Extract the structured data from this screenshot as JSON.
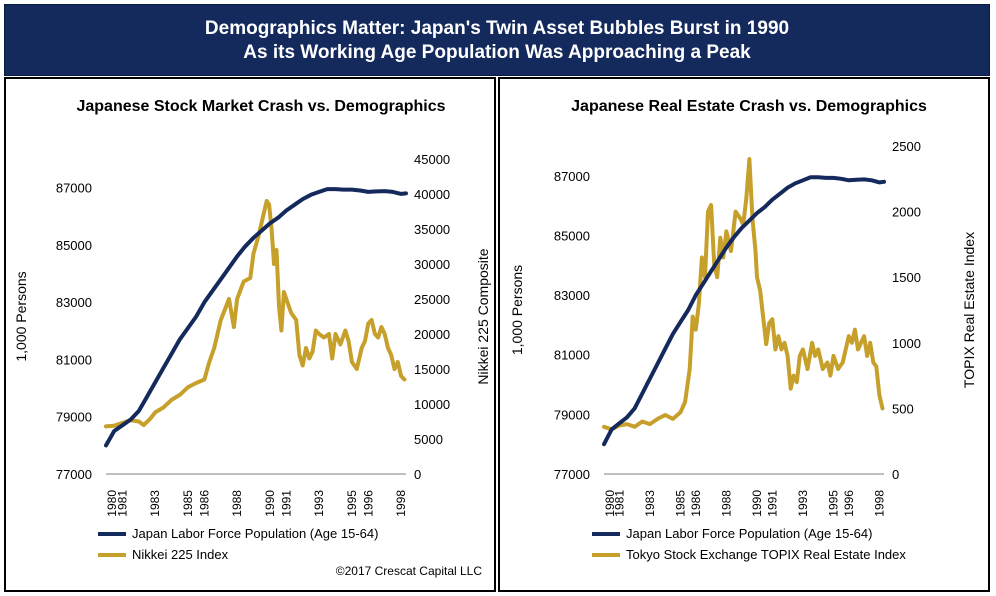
{
  "header": {
    "title_line1": "Demographics Matter: Japan's Twin Asset Bubbles Burst in 1990",
    "title_line2": "As its Working Age Population Was Approaching a Peak"
  },
  "colors": {
    "banner": "#14295c",
    "labor": "#14295c",
    "index": "#c6a02a"
  },
  "chart_data": [
    {
      "type": "line",
      "title": "Japanese Stock Market Crash vs. Demographics",
      "ylabel": "1,000 Persons",
      "y2label": "Nikkei 225 Composite",
      "ylim": [
        77000,
        88000
      ],
      "yticks": [
        77000,
        79000,
        81000,
        83000,
        85000,
        87000
      ],
      "y2lim": [
        0,
        45000
      ],
      "y2ticks": [
        0,
        5000,
        10000,
        15000,
        20000,
        25000,
        30000,
        35000,
        40000,
        45000
      ],
      "xlim": [
        1980,
        1998.3
      ],
      "xticks": [
        "1980",
        "1981",
        "1983",
        "1985",
        "1986",
        "1988",
        "1990",
        "1991",
        "1993",
        "1995",
        "1996",
        "1998"
      ],
      "legend": "bottom",
      "footer": "©2017 Crescat Capital LLC",
      "series": [
        {
          "name": "Japan Labor Force Population (Age 15-64)",
          "axis": "left",
          "x": [
            1980,
            1980.5,
            1981,
            1981.5,
            1982,
            1982.5,
            1983,
            1983.5,
            1984,
            1984.5,
            1985,
            1985.5,
            1986,
            1986.5,
            1987,
            1987.5,
            1988,
            1988.5,
            1989,
            1989.5,
            1990,
            1990.5,
            1991,
            1991.5,
            1992,
            1992.5,
            1993,
            1993.5,
            1994,
            1994.5,
            1995,
            1995.5,
            1996,
            1996.5,
            1997,
            1997.5,
            1998,
            1998.3
          ],
          "values": [
            78000,
            78500,
            78700,
            78900,
            79200,
            79700,
            80200,
            80700,
            81200,
            81700,
            82100,
            82500,
            83000,
            83400,
            83800,
            84200,
            84600,
            84950,
            85250,
            85500,
            85750,
            85950,
            86200,
            86400,
            86600,
            86750,
            86850,
            86950,
            86950,
            86930,
            86930,
            86900,
            86850,
            86870,
            86880,
            86850,
            86780,
            86800
          ]
        },
        {
          "name": "Nikkei 225 Index",
          "axis": "right",
          "x": [
            1980,
            1980.5,
            1981,
            1981.5,
            1982,
            1982.3,
            1982.7,
            1983,
            1983.5,
            1984,
            1984.5,
            1985,
            1985.5,
            1986,
            1986.3,
            1986.6,
            1987,
            1987.5,
            1987.8,
            1988,
            1988.4,
            1988.8,
            1989,
            1989.3,
            1989.6,
            1989.8,
            1989.95,
            1990.1,
            1990.25,
            1990.4,
            1990.55,
            1990.7,
            1990.85,
            1991,
            1991.3,
            1991.6,
            1991.8,
            1992,
            1992.2,
            1992.4,
            1992.6,
            1992.8,
            1993,
            1993.3,
            1993.6,
            1993.8,
            1994,
            1994.3,
            1994.6,
            1994.8,
            1995,
            1995.3,
            1995.6,
            1995.8,
            1996,
            1996.2,
            1996.4,
            1996.6,
            1996.8,
            1997,
            1997.2,
            1997.4,
            1997.6,
            1997.8,
            1998,
            1998.2
          ],
          "values": [
            6800,
            6900,
            7300,
            7700,
            7500,
            7000,
            7900,
            8800,
            9500,
            10600,
            11300,
            12400,
            13000,
            13500,
            16000,
            18000,
            22000,
            25000,
            21000,
            25000,
            27500,
            28000,
            31500,
            34000,
            37000,
            39000,
            38500,
            35000,
            30000,
            32000,
            24000,
            20500,
            26000,
            25000,
            23000,
            22000,
            17000,
            15500,
            18000,
            16500,
            17500,
            20500,
            20000,
            19500,
            20000,
            16500,
            20000,
            18500,
            20500,
            19000,
            16000,
            15000,
            18000,
            19000,
            21500,
            22000,
            20000,
            19500,
            21000,
            20000,
            18000,
            17000,
            15000,
            16000,
            14000,
            13500
          ]
        }
      ]
    },
    {
      "type": "line",
      "title": "Japanese Real Estate Crash vs. Demographics",
      "ylabel": "1,000 Persons",
      "y2label": "TOPIX Real Estate Index",
      "ylim": [
        77000,
        88000
      ],
      "yticks": [
        77000,
        79000,
        81000,
        83000,
        85000,
        87000
      ],
      "y2lim": [
        0,
        2500
      ],
      "y2ticks": [
        0,
        500,
        1000,
        1500,
        2000,
        2500
      ],
      "xlim": [
        1980,
        1998.3
      ],
      "xticks": [
        "1980",
        "1981",
        "1983",
        "1985",
        "1986",
        "1988",
        "1990",
        "1991",
        "1993",
        "1995",
        "1996",
        "1998"
      ],
      "legend": "bottom",
      "series": [
        {
          "name": "Japan Labor Force Population (Age 15-64)",
          "axis": "left",
          "x": [
            1980,
            1980.5,
            1981,
            1981.5,
            1982,
            1982.5,
            1983,
            1983.5,
            1984,
            1984.5,
            1985,
            1985.5,
            1986,
            1986.5,
            1987,
            1987.5,
            1988,
            1988.5,
            1989,
            1989.5,
            1990,
            1990.5,
            1991,
            1991.5,
            1992,
            1992.5,
            1993,
            1993.5,
            1994,
            1994.5,
            1995,
            1995.5,
            1996,
            1996.5,
            1997,
            1997.5,
            1998,
            1998.3
          ],
          "values": [
            78000,
            78500,
            78700,
            78900,
            79200,
            79700,
            80200,
            80700,
            81200,
            81700,
            82100,
            82500,
            83000,
            83400,
            83800,
            84200,
            84600,
            84950,
            85250,
            85500,
            85750,
            85950,
            86200,
            86400,
            86600,
            86750,
            86850,
            86950,
            86950,
            86930,
            86930,
            86900,
            86850,
            86870,
            86880,
            86850,
            86780,
            86800
          ]
        },
        {
          "name": "Tokyo Stock Exchange TOPIX Real Estate Index",
          "axis": "right",
          "x": [
            1980,
            1980.5,
            1981,
            1981.5,
            1982,
            1982.5,
            1983,
            1983.5,
            1984,
            1984.5,
            1985,
            1985.3,
            1985.6,
            1985.8,
            1986,
            1986.2,
            1986.4,
            1986.6,
            1986.8,
            1987,
            1987.2,
            1987.4,
            1987.6,
            1987.8,
            1988,
            1988.3,
            1988.6,
            1988.9,
            1989.1,
            1989.3,
            1989.5,
            1989.7,
            1989.9,
            1990,
            1990.2,
            1990.4,
            1990.6,
            1990.8,
            1991,
            1991.2,
            1991.4,
            1991.6,
            1991.8,
            1992,
            1992.2,
            1992.4,
            1992.6,
            1992.8,
            1993,
            1993.3,
            1993.6,
            1993.8,
            1994,
            1994.3,
            1994.6,
            1994.8,
            1995,
            1995.3,
            1995.6,
            1995.8,
            1996,
            1996.2,
            1996.4,
            1996.6,
            1996.8,
            1997,
            1997.2,
            1997.4,
            1997.6,
            1997.8,
            1998,
            1998.2
          ],
          "values": [
            360,
            340,
            370,
            380,
            360,
            400,
            380,
            420,
            450,
            420,
            470,
            550,
            800,
            1200,
            1100,
            1300,
            1650,
            1500,
            2000,
            2050,
            1600,
            1500,
            1800,
            1650,
            1850,
            1700,
            2000,
            1950,
            1900,
            2100,
            2400,
            1950,
            1700,
            1500,
            1400,
            1200,
            990,
            1150,
            1180,
            950,
            1050,
            950,
            1000,
            900,
            650,
            750,
            700,
            900,
            950,
            800,
            1000,
            900,
            950,
            800,
            850,
            750,
            900,
            800,
            850,
            950,
            1050,
            1000,
            1100,
            950,
            1000,
            1050,
            900,
            1000,
            850,
            820,
            600,
            500
          ]
        }
      ]
    }
  ]
}
